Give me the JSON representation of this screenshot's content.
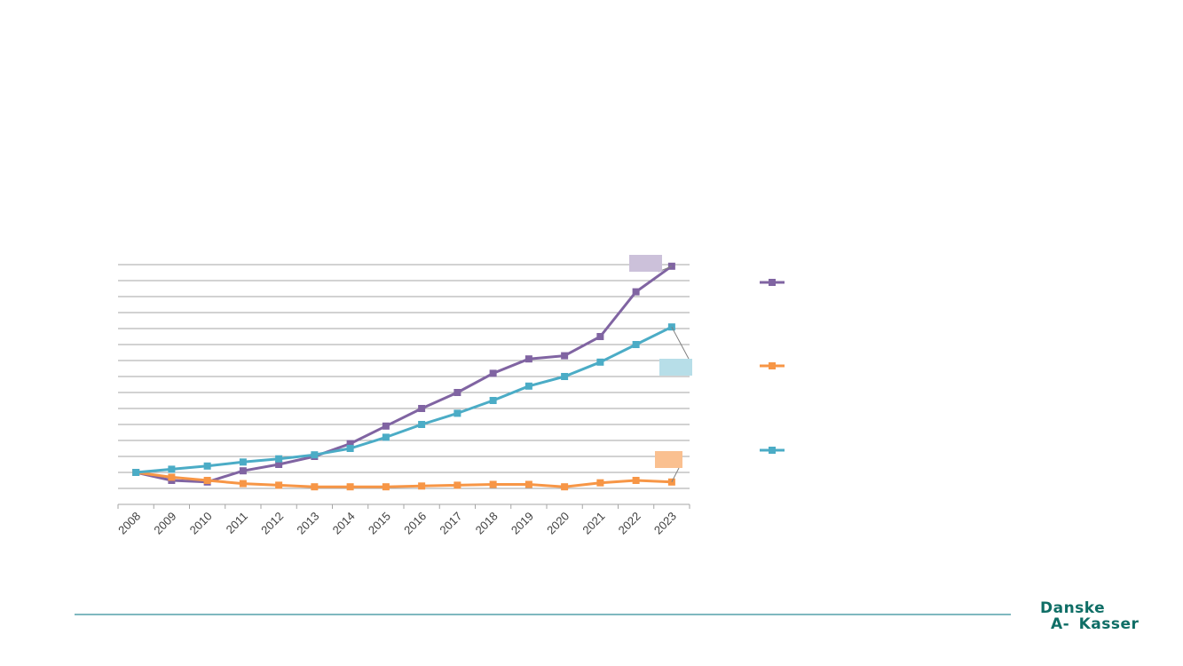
{
  "chart_data": {
    "type": "line",
    "x": [
      "2008",
      "2009",
      "2010",
      "2011",
      "2012",
      "2013",
      "2014",
      "2015",
      "2016",
      "2017",
      "2018",
      "2019",
      "2020",
      "2021",
      "2022",
      "2023"
    ],
    "series": [
      {
        "color": "#8064a2",
        "label_box_color": "#ccc1da",
        "values": [
          100,
          95,
          94,
          101,
          105,
          110,
          118,
          129,
          140,
          150,
          162,
          171,
          173,
          185,
          213,
          229
        ]
      },
      {
        "color": "#f79646",
        "label_box_color": "#fac090",
        "values": [
          100,
          97,
          95,
          93,
          92,
          91,
          91,
          91,
          91.5,
          92,
          92.5,
          92.5,
          91,
          93.5,
          95,
          94
        ]
      },
      {
        "color": "#4bacc6",
        "label_box_color": "#b7dee8",
        "values": [
          100,
          102,
          104,
          106.5,
          108.5,
          111,
          115,
          122,
          130,
          137,
          145,
          154,
          160,
          169,
          180,
          191
        ]
      }
    ],
    "ylim": [
      80,
      240
    ],
    "y_gridline_step": 10,
    "grid": true,
    "legend": "right",
    "marker": "square"
  },
  "logo": {
    "line1": "Danske",
    "line2": "A- Kasser",
    "color": "#0f6e66"
  }
}
